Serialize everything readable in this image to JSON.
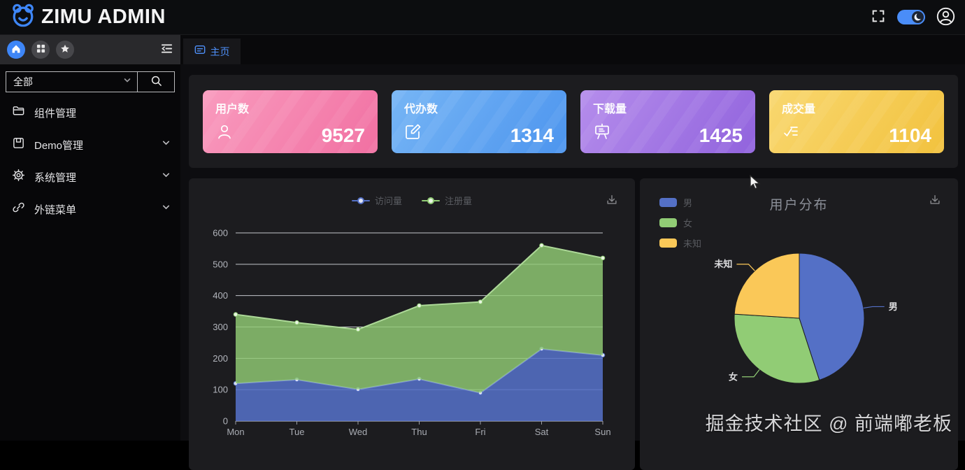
{
  "header": {
    "title": "ZIMU ADMIN",
    "logo_icon": "bear-icon",
    "fullscreen_icon": "fullscreen-icon",
    "theme_toggle": {
      "state": "on",
      "knob_icon": "moon-icon",
      "color": "#4a8df8"
    },
    "avatar_icon": "user-avatar-icon"
  },
  "sidebar": {
    "toolbar": {
      "buttons": [
        {
          "icon": "home-icon",
          "active": true
        },
        {
          "icon": "grid-icon",
          "active": false
        },
        {
          "icon": "star-icon",
          "active": false
        }
      ],
      "collapse_icon": "menu-fold-icon"
    },
    "search": {
      "selected_option": "全部",
      "search_icon": "search-icon"
    },
    "menu": [
      {
        "label": "组件管理",
        "icon": "folder-icon",
        "expandable": false
      },
      {
        "label": "Demo管理",
        "icon": "save-icon",
        "expandable": true
      },
      {
        "label": "系统管理",
        "icon": "gear-icon",
        "expandable": true
      },
      {
        "label": "外链菜单",
        "icon": "link-icon",
        "expandable": true
      }
    ]
  },
  "tabbar": {
    "tabs": [
      {
        "label": "主页",
        "icon": "home-tab-icon",
        "active": true
      }
    ]
  },
  "stats": {
    "cards": [
      {
        "label": "用户数",
        "value": "9527",
        "icon": "user-icon",
        "color_from": "#f99bbe",
        "color_to": "#f170a2"
      },
      {
        "label": "代办数",
        "value": "1314",
        "icon": "edit-icon",
        "color_from": "#76b5f5",
        "color_to": "#4d95ee"
      },
      {
        "label": "下载量",
        "value": "1425",
        "icon": "board-icon",
        "color_from": "#b58dec",
        "color_to": "#9163dd"
      },
      {
        "label": "成交量",
        "value": "1104",
        "icon": "checklist-icon",
        "color_from": "#f9d76f",
        "color_to": "#f2c23e"
      }
    ]
  },
  "chart_data": [
    {
      "type": "area",
      "stacked": true,
      "x": [
        "Mon",
        "Tue",
        "Wed",
        "Thu",
        "Fri",
        "Sat",
        "Sun"
      ],
      "series": [
        {
          "name": "访问量",
          "color": "#5470c6",
          "values": [
            120,
            132,
            101,
            134,
            90,
            230,
            210
          ]
        },
        {
          "name": "注册量",
          "color": "#91cc75",
          "values": [
            220,
            182,
            191,
            234,
            290,
            330,
            310
          ]
        }
      ],
      "stacked_totals": [
        340,
        314,
        292,
        368,
        380,
        560,
        520
      ],
      "ylim": [
        0,
        600
      ],
      "ytick_step": 100,
      "grid": true,
      "legend_position": "top-center",
      "download_icon": "download-icon"
    },
    {
      "type": "pie",
      "title": "用户分布",
      "labels": [
        "男",
        "女",
        "未知"
      ],
      "values": [
        45,
        31,
        24
      ],
      "colors": [
        "#5470c6",
        "#91cc75",
        "#fac858"
      ],
      "legend_position": "top-left",
      "start_angle": "top",
      "direction": "clockwise",
      "download_icon": "download-icon"
    }
  ],
  "watermark": "掘金技术社区 @ 前端嘟老板"
}
